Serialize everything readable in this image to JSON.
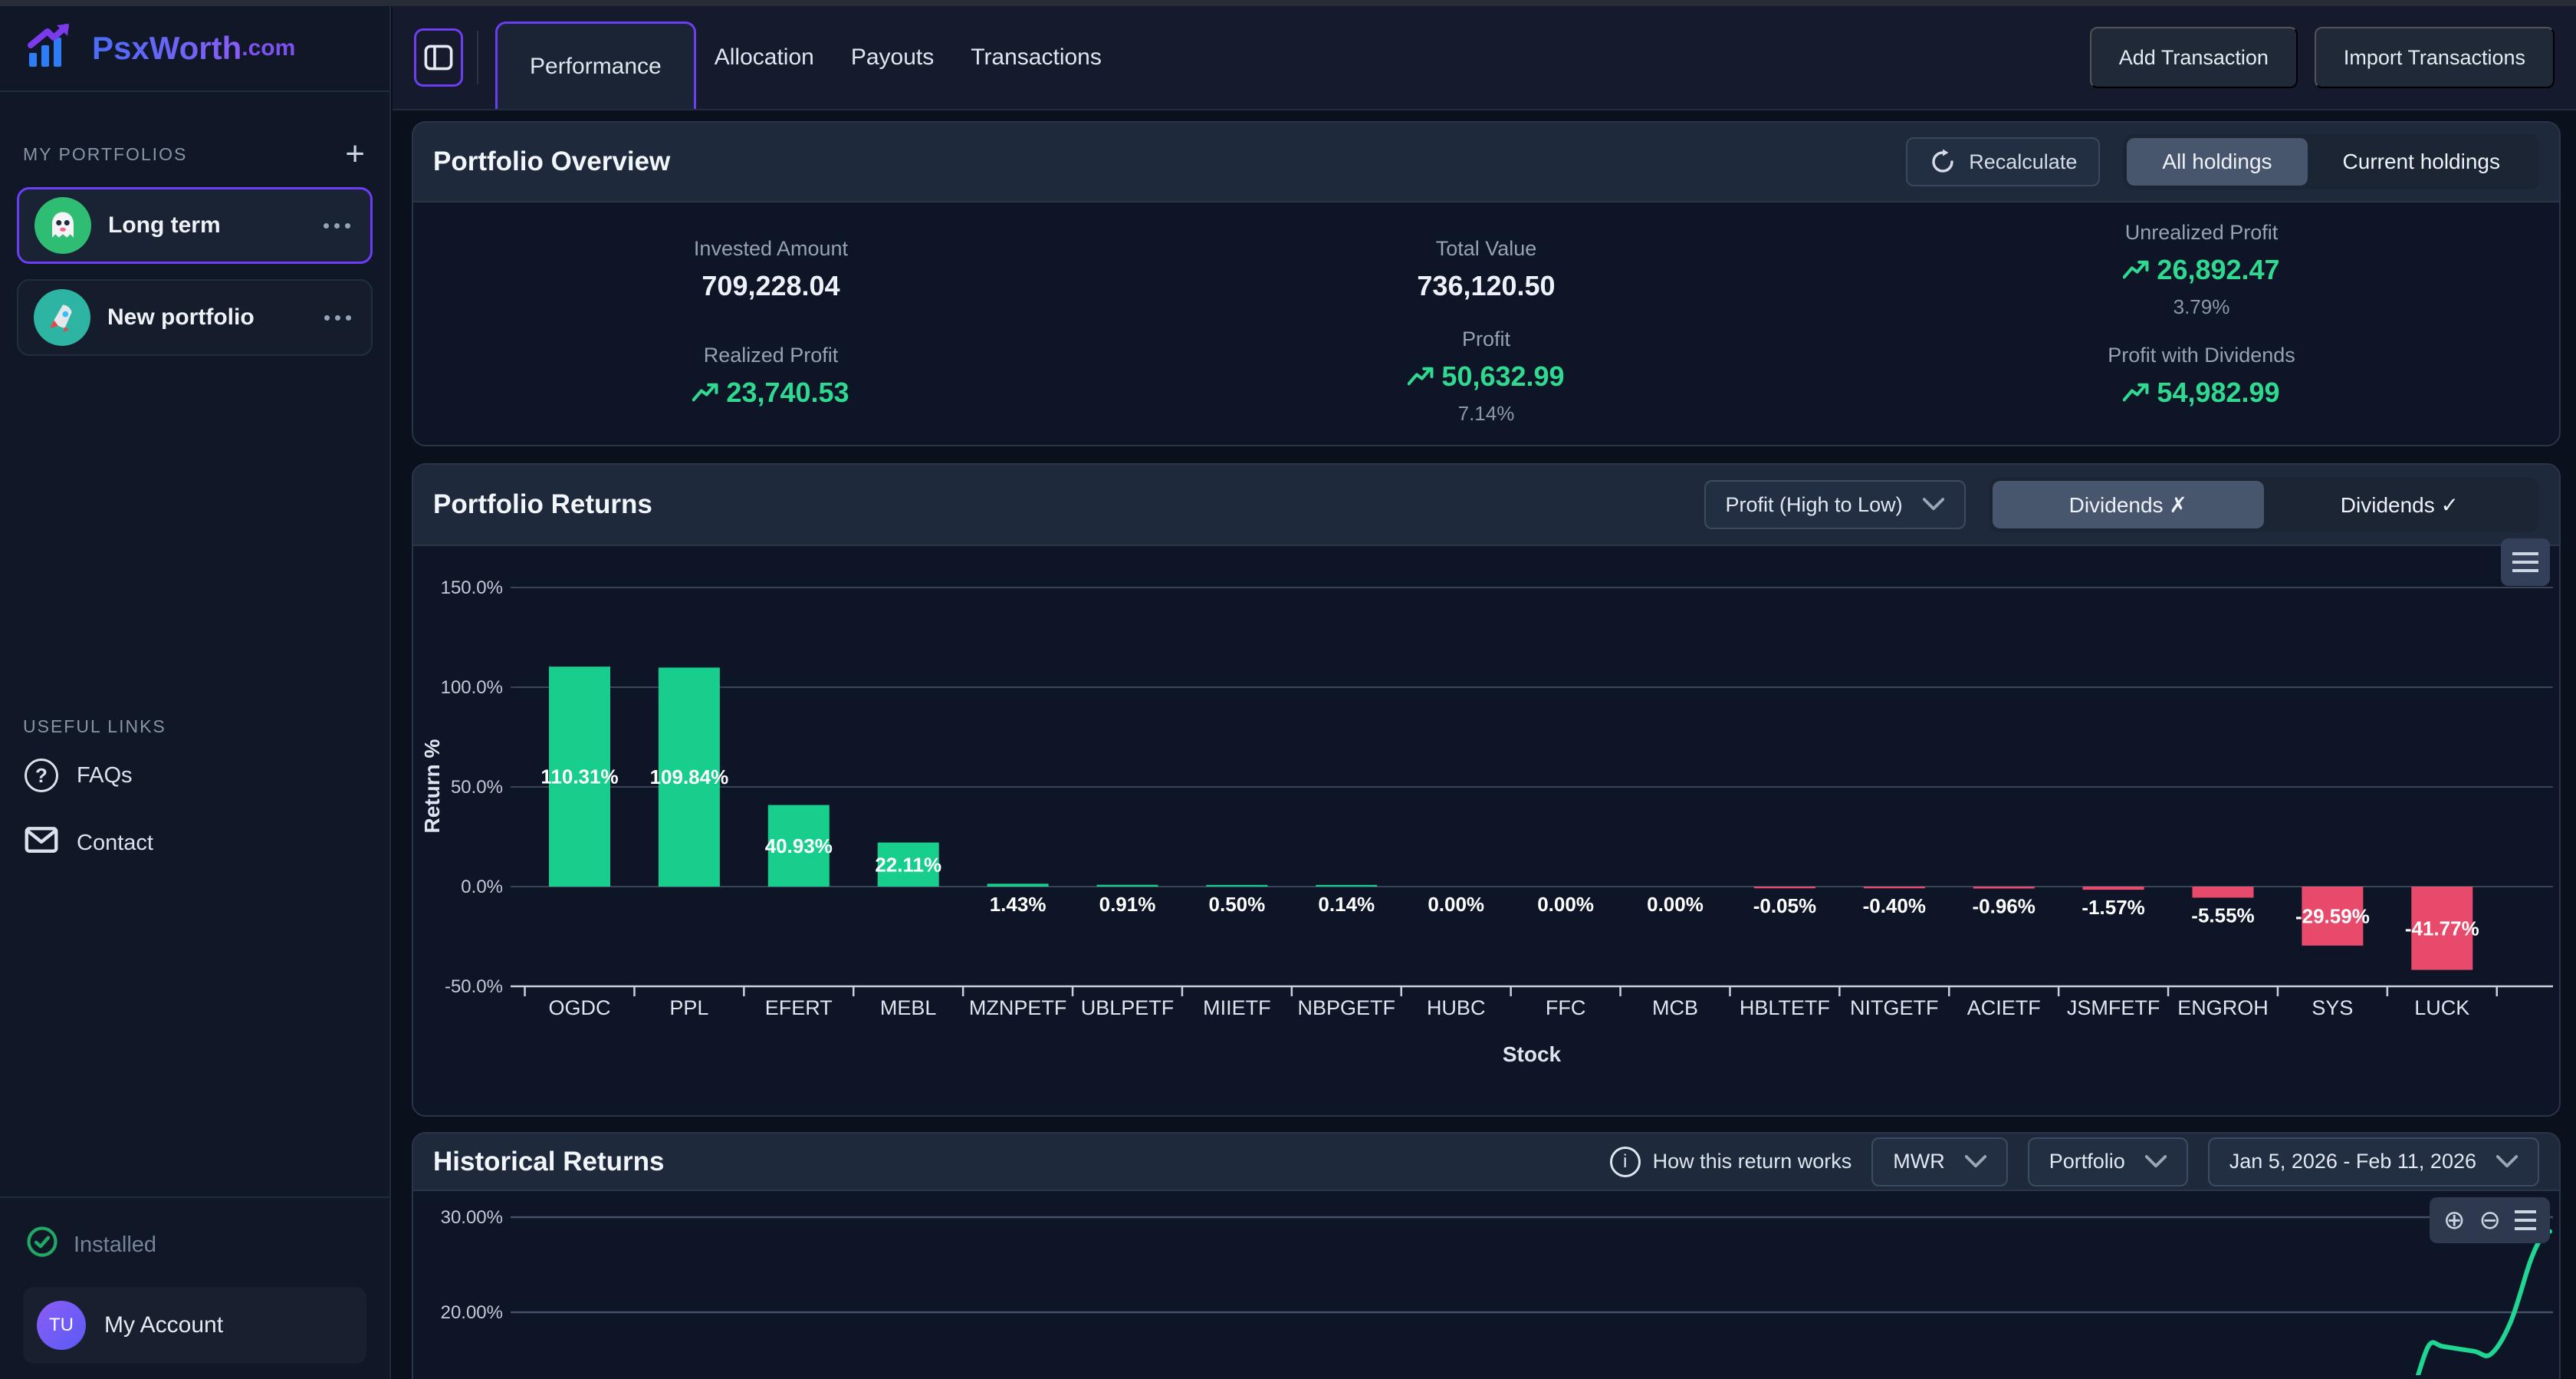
{
  "brand": {
    "name": "PsxWorth",
    "tld": ".com"
  },
  "sidebar": {
    "portfolios_header": "MY PORTFOLIOS",
    "add_button": "+",
    "portfolios": [
      {
        "name": "Long term",
        "icon": "ghost-emoji",
        "selected": true
      },
      {
        "name": "New portfolio",
        "icon": "rocket-emoji",
        "selected": false
      }
    ],
    "useful_links_header": "USEFUL LINKS",
    "links": [
      {
        "label": "FAQs",
        "icon": "question-circle-icon"
      },
      {
        "label": "Contact",
        "icon": "envelope-icon"
      }
    ],
    "installed_label": "Installed",
    "account": {
      "initials": "TU",
      "label": "My Account"
    }
  },
  "topbar": {
    "tabs": [
      {
        "label": "Performance",
        "active": true
      },
      {
        "label": "Allocation",
        "active": false
      },
      {
        "label": "Payouts",
        "active": false
      },
      {
        "label": "Transactions",
        "active": false
      }
    ],
    "add_transaction": "Add Transaction",
    "import_transactions": "Import Transactions"
  },
  "overview": {
    "title": "Portfolio Overview",
    "recalculate_label": "Recalculate",
    "holdings_toggle": [
      {
        "label": "All holdings",
        "selected": true
      },
      {
        "label": "Current holdings",
        "selected": false
      }
    ],
    "stats": [
      {
        "label": "Invested Amount",
        "value": "709,228.04"
      },
      {
        "label": "Total Value",
        "value": "736,120.50"
      },
      {
        "label": "Unrealized Profit",
        "value": "26,892.47",
        "sub": "3.79%"
      },
      {
        "label": "Realized Profit",
        "value": "23,740.53"
      },
      {
        "label": "Profit",
        "value": "50,632.99",
        "sub": "7.14%"
      },
      {
        "label": "Profit with Dividends",
        "value": "54,982.99"
      }
    ]
  },
  "returns_section": {
    "title": "Portfolio Returns",
    "sort_dropdown": "Profit (High to Low)",
    "dividends_toggle": [
      {
        "label": "Dividends ✗",
        "selected": true
      },
      {
        "label": "Dividends ✓",
        "selected": false
      }
    ]
  },
  "historical_section": {
    "title": "Historical Returns",
    "info_label": "How this return works",
    "method_dropdown": "MWR",
    "scope_dropdown": "Portfolio",
    "date_range": "Jan 5, 2026 - Feb 11, 2026"
  },
  "colors": {
    "accent_purple": "#6d3cf5",
    "positive_green": "#17ce8d",
    "negative_red": "#e84a6c",
    "line_green": "#1fd792",
    "grid": "#3a4459",
    "axis": "#c9d1dd"
  },
  "chart_data": [
    {
      "type": "bar",
      "title": "Portfolio Returns",
      "xlabel": "Stock",
      "ylabel": "Return %",
      "ylim": [
        -50,
        150
      ],
      "ytick_labels": [
        "150.0%",
        "100.0%",
        "50.0%",
        "0.0%",
        "-50.0%"
      ],
      "ytick_values": [
        150,
        100,
        50,
        0,
        -50
      ],
      "grid": true,
      "categories": [
        "OGDC",
        "PPL",
        "EFERT",
        "MEBL",
        "MZNPETF",
        "UBLPETF",
        "MIIETF",
        "NBPGETF",
        "HUBC",
        "FFC",
        "MCB",
        "HBLTETF",
        "NITGETF",
        "ACIETF",
        "JSMFETF",
        "ENGROH",
        "SYS",
        "LUCK"
      ],
      "values": [
        110.31,
        109.84,
        40.93,
        22.11,
        1.43,
        0.91,
        0.5,
        0.14,
        0.0,
        0.0,
        0.0,
        -0.05,
        -0.4,
        -0.96,
        -1.57,
        -5.55,
        -29.59,
        -41.77
      ],
      "value_labels": [
        "110.31%",
        "109.84%",
        "40.93%",
        "22.11%",
        "1.43%",
        "0.91%",
        "0.50%",
        "0.14%",
        "0.00%",
        "0.00%",
        "0.00%",
        "-0.05%",
        "-0.40%",
        "-0.96%",
        "-1.57%",
        "-5.55%",
        "-29.59%",
        "-41.77%"
      ]
    },
    {
      "type": "line",
      "title": "Historical Returns (visible portion)",
      "ytick_labels": [
        "30.00%",
        "20.00%"
      ],
      "ytick_values": [
        30,
        20
      ],
      "grid": true,
      "series": [
        {
          "name": "Portfolio MWR",
          "points_x_fraction_y_pct": [
            [
              0.931,
              11.9
            ],
            [
              0.9333,
              13.0
            ],
            [
              0.9395,
              16.6
            ],
            [
              0.9463,
              16.4
            ],
            [
              0.9613,
              15.9
            ],
            [
              0.9696,
              15.6
            ],
            [
              0.9793,
              19.0
            ],
            [
              0.9891,
              25.5
            ],
            [
              0.9951,
              28.1
            ],
            [
              0.9985,
              28.5
            ]
          ]
        }
      ]
    }
  ]
}
